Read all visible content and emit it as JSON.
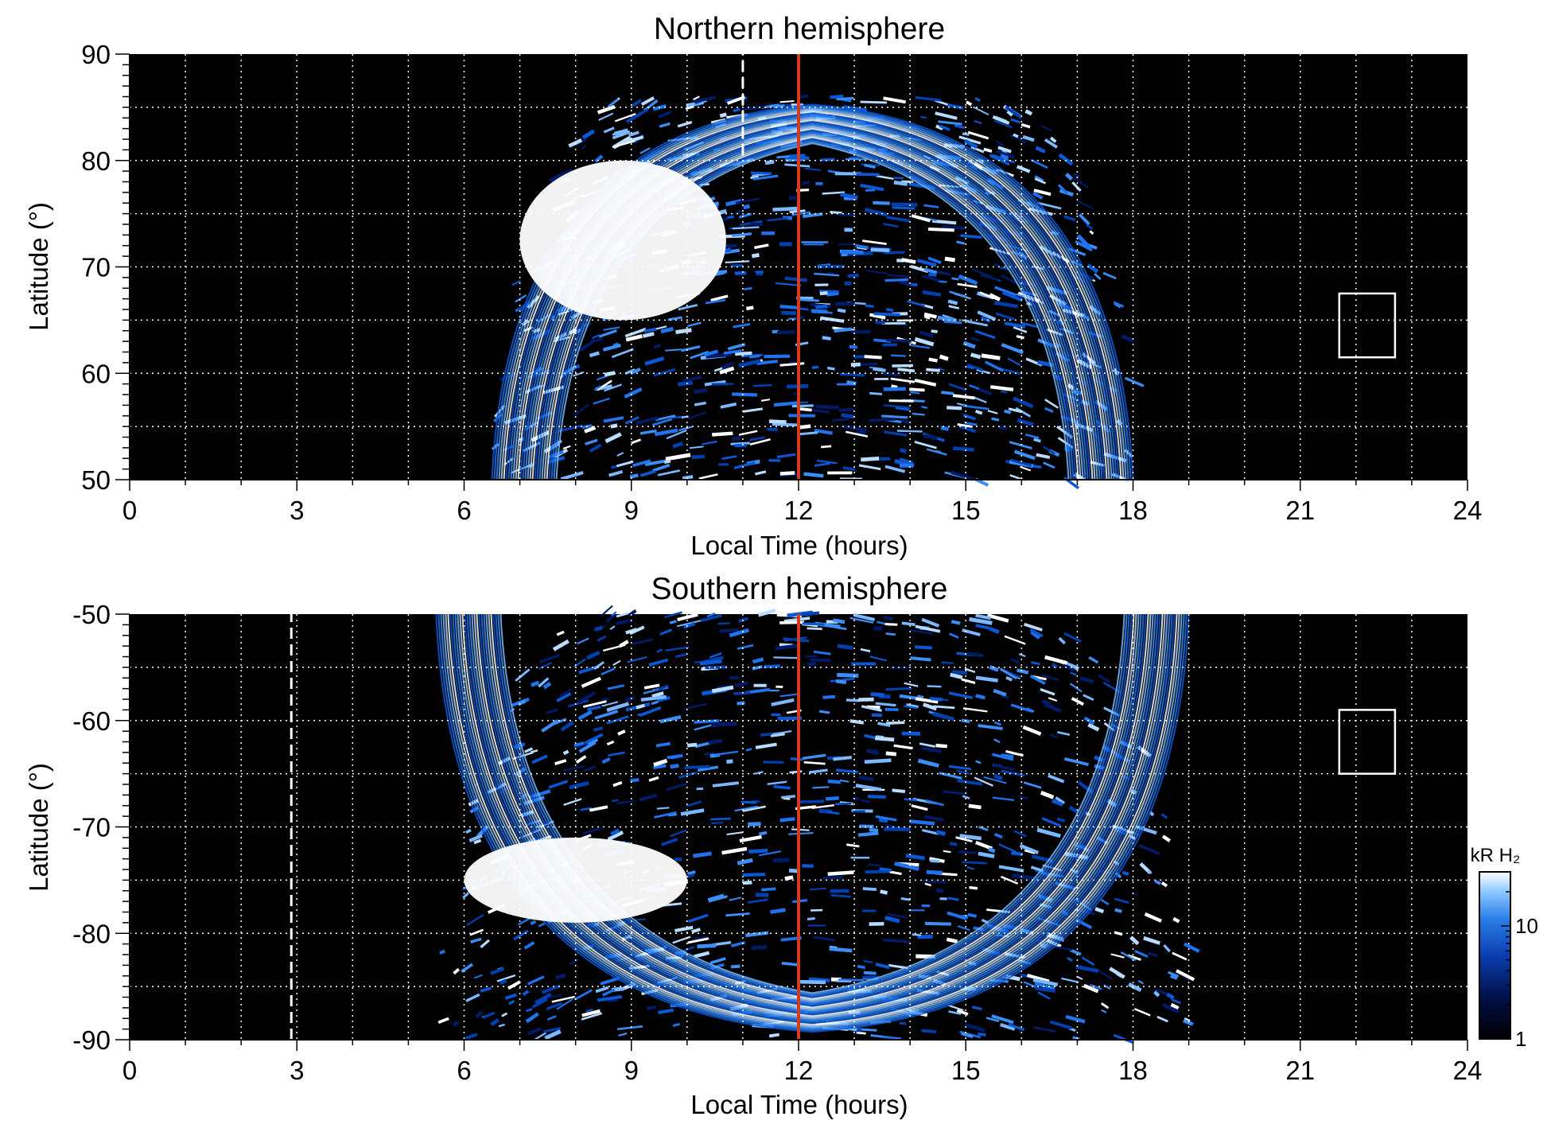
{
  "chart_data": [
    {
      "type": "heatmap",
      "title": "Northern hemisphere",
      "xlabel": "Local Time (hours)",
      "ylabel": "Latitude (°)",
      "xlim": [
        0,
        24
      ],
      "ylim": [
        50,
        90
      ],
      "xticks": [
        "0",
        "3",
        "6",
        "9",
        "12",
        "15",
        "18",
        "21",
        "24"
      ],
      "yticks": [
        "50",
        "60",
        "70",
        "80",
        "90"
      ],
      "grid": true,
      "background": "#000000",
      "noon_line": {
        "x": 12,
        "color": "#d43a1e"
      },
      "dashed_marker": {
        "x": 11.0,
        "y_range": [
          80.5,
          90
        ]
      },
      "box": {
        "x": [
          21.7,
          22.7
        ],
        "y": [
          61.5,
          67.5
        ]
      },
      "emission_region": {
        "x_range": [
          6.5,
          18.0
        ],
        "y_range": [
          50,
          86
        ],
        "peak": {
          "x_range": [
            7,
            10.7
          ],
          "y_range": [
            65,
            80
          ]
        }
      }
    },
    {
      "type": "heatmap",
      "title": "Southern hemisphere",
      "xlabel": "Local Time (hours)",
      "ylabel": "Latitude (°)",
      "xlim": [
        0,
        24
      ],
      "ylim": [
        -90,
        -50
      ],
      "xticks": [
        "0",
        "3",
        "6",
        "9",
        "12",
        "15",
        "18",
        "21",
        "24"
      ],
      "yticks": [
        "-90",
        "-80",
        "-70",
        "-60",
        "-50"
      ],
      "grid": true,
      "background": "#000000",
      "noon_line": {
        "x": 12,
        "color": "#d43a1e"
      },
      "dashed_marker": {
        "x": 2.9,
        "y_range": [
          -90,
          -50
        ]
      },
      "box": {
        "x": [
          21.7,
          22.7
        ],
        "y": [
          -65,
          -59
        ]
      },
      "emission_region": {
        "x_range": [
          5.5,
          19.0
        ],
        "y_range": [
          -90,
          -50
        ],
        "peak": {
          "x_range": [
            6,
            10
          ],
          "y_range": [
            -79,
            -71
          ]
        }
      }
    }
  ],
  "colorbar": {
    "label": "kR H₂",
    "scale": "log",
    "range": [
      1,
      30
    ],
    "ticks": [
      "1",
      "10"
    ],
    "colors": [
      "#000000",
      "#00104a",
      "#0a3fb0",
      "#2a7fe8",
      "#8cc8ff",
      "#ffffff"
    ]
  }
}
